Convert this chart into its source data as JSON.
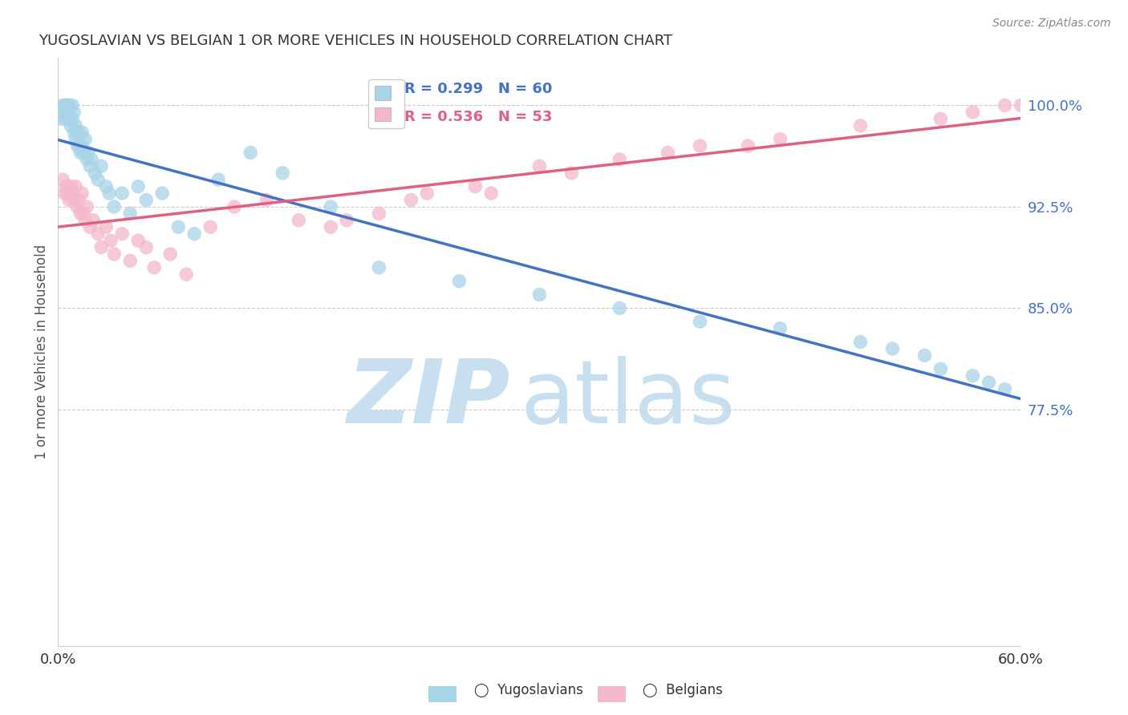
{
  "title": "YUGOSLAVIAN VS BELGIAN 1 OR MORE VEHICLES IN HOUSEHOLD CORRELATION CHART",
  "source": "Source: ZipAtlas.com",
  "ylabel": "1 or more Vehicles in Household",
  "xlim": [
    0.0,
    60.0
  ],
  "ylim": [
    60.0,
    103.5
  ],
  "yticks": [
    77.5,
    85.0,
    92.5,
    100.0
  ],
  "blue_label": "Yugoslavians",
  "pink_label": "Belgians",
  "blue_color": "#a8d4e8",
  "pink_color": "#f4b8cc",
  "blue_line_color": "#4472c4",
  "pink_line_color": "#e06080",
  "legend_R_blue": "R = 0.299",
  "legend_N_blue": "N = 60",
  "legend_R_pink": "R = 0.536",
  "legend_N_pink": "N = 53",
  "watermark_zip": "ZIP",
  "watermark_atlas": "atlas",
  "watermark_color": "#c8dff0",
  "blue_x": [
    0.2,
    0.3,
    0.3,
    0.4,
    0.5,
    0.5,
    0.6,
    0.6,
    0.7,
    0.7,
    0.8,
    0.9,
    0.9,
    1.0,
    1.0,
    1.1,
    1.1,
    1.2,
    1.2,
    1.3,
    1.3,
    1.4,
    1.5,
    1.5,
    1.6,
    1.7,
    1.8,
    1.9,
    2.0,
    2.1,
    2.3,
    2.5,
    2.7,
    3.0,
    3.2,
    3.5,
    4.0,
    4.5,
    5.0,
    5.5,
    6.5,
    7.5,
    8.5,
    10.0,
    12.0,
    14.0,
    17.0,
    20.0,
    25.0,
    30.0,
    35.0,
    40.0,
    45.0,
    50.0,
    52.0,
    54.0,
    55.0,
    57.0,
    58.0,
    59.0
  ],
  "blue_y": [
    99.0,
    99.5,
    100.0,
    100.0,
    99.0,
    100.0,
    99.5,
    100.0,
    99.0,
    100.0,
    98.5,
    99.0,
    100.0,
    98.0,
    99.5,
    97.5,
    98.5,
    97.0,
    98.0,
    97.0,
    98.0,
    96.5,
    97.0,
    98.0,
    96.5,
    97.5,
    96.0,
    96.5,
    95.5,
    96.0,
    95.0,
    94.5,
    95.5,
    94.0,
    93.5,
    92.5,
    93.5,
    92.0,
    94.0,
    93.0,
    93.5,
    91.0,
    90.5,
    94.5,
    96.5,
    95.0,
    92.5,
    88.0,
    87.0,
    86.0,
    85.0,
    84.0,
    83.5,
    82.5,
    82.0,
    81.5,
    80.5,
    80.0,
    79.5,
    79.0
  ],
  "pink_x": [
    0.3,
    0.4,
    0.5,
    0.6,
    0.7,
    0.8,
    0.9,
    1.0,
    1.1,
    1.2,
    1.3,
    1.4,
    1.5,
    1.6,
    1.7,
    1.8,
    2.0,
    2.2,
    2.5,
    2.7,
    3.0,
    3.3,
    3.5,
    4.0,
    4.5,
    5.0,
    5.5,
    6.0,
    7.0,
    8.0,
    9.5,
    11.0,
    13.0,
    15.0,
    17.0,
    20.0,
    23.0,
    26.0,
    30.0,
    35.0,
    40.0,
    45.0,
    50.0,
    55.0,
    57.0,
    59.0,
    60.0,
    43.0,
    38.0,
    32.0,
    27.0,
    22.0,
    18.0
  ],
  "pink_y": [
    94.5,
    93.5,
    94.0,
    93.5,
    93.0,
    94.0,
    93.5,
    93.0,
    94.0,
    92.5,
    93.0,
    92.0,
    93.5,
    92.0,
    91.5,
    92.5,
    91.0,
    91.5,
    90.5,
    89.5,
    91.0,
    90.0,
    89.0,
    90.5,
    88.5,
    90.0,
    89.5,
    88.0,
    89.0,
    87.5,
    91.0,
    92.5,
    93.0,
    91.5,
    91.0,
    92.0,
    93.5,
    94.0,
    95.5,
    96.0,
    97.0,
    97.5,
    98.5,
    99.0,
    99.5,
    100.0,
    100.0,
    97.0,
    96.5,
    95.0,
    93.5,
    93.0,
    91.5
  ]
}
